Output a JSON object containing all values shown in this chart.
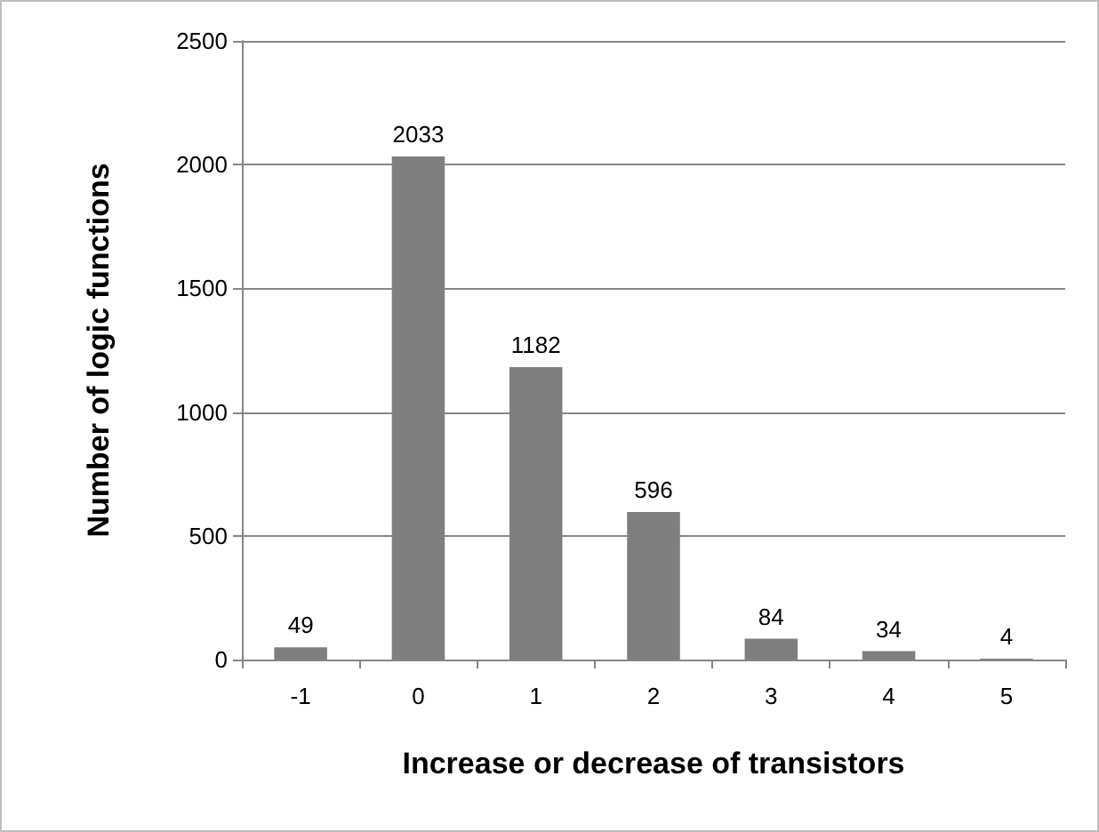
{
  "chart_data": {
    "type": "bar",
    "xlabel": "Increase or decrease of transistors",
    "ylabel": "Number of logic functions",
    "categories": [
      "-1",
      "0",
      "1",
      "2",
      "3",
      "4",
      "5"
    ],
    "values": [
      49,
      2033,
      1182,
      596,
      84,
      34,
      4
    ],
    "color": "#7f7f7f",
    "ylim": [
      0,
      2500
    ],
    "yticks": [
      0,
      500,
      1000,
      1500,
      2000,
      2500
    ],
    "grid": "y",
    "data_labels": true
  }
}
